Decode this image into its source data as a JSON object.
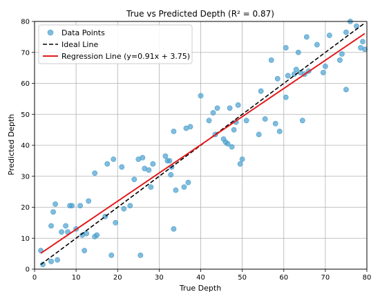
{
  "chart_data": {
    "type": "scatter",
    "title": "True vs Predicted Depth (R² = 0.87)",
    "xlabel": "True Depth",
    "ylabel": "Predicted Depth",
    "xlim": [
      0,
      80
    ],
    "ylim": [
      0,
      80
    ],
    "xticks": [
      0,
      10,
      20,
      30,
      40,
      50,
      60,
      70,
      80
    ],
    "yticks": [
      0,
      10,
      20,
      30,
      40,
      50,
      60,
      70,
      80
    ],
    "grid": true,
    "legend_position": "top-left",
    "series": [
      {
        "name": "Data Points",
        "kind": "scatter",
        "color": "#4a9fce",
        "points": [
          [
            1.5,
            6
          ],
          [
            2,
            1.5
          ],
          [
            4,
            2.5
          ],
          [
            4,
            14
          ],
          [
            4.5,
            18.5
          ],
          [
            5,
            21
          ],
          [
            5.5,
            3
          ],
          [
            6.5,
            12
          ],
          [
            7.5,
            14
          ],
          [
            8,
            12
          ],
          [
            8.5,
            20.5
          ],
          [
            9,
            20.5
          ],
          [
            10,
            13
          ],
          [
            11,
            20.5
          ],
          [
            11.5,
            11
          ],
          [
            12,
            6
          ],
          [
            12.5,
            11.5
          ],
          [
            13,
            22
          ],
          [
            14.5,
            31
          ],
          [
            14.5,
            10.5
          ],
          [
            15,
            11
          ],
          [
            17,
            17
          ],
          [
            17.5,
            34
          ],
          [
            18.5,
            4.5
          ],
          [
            19,
            35.5
          ],
          [
            19.5,
            15
          ],
          [
            21,
            33
          ],
          [
            21.5,
            19.5
          ],
          [
            23,
            20.5
          ],
          [
            24,
            29
          ],
          [
            25,
            35.5
          ],
          [
            25.5,
            4.5
          ],
          [
            26,
            36
          ],
          [
            26.5,
            32.5
          ],
          [
            27.5,
            32
          ],
          [
            28,
            26.5
          ],
          [
            28.5,
            34
          ],
          [
            31.5,
            36.5
          ],
          [
            32,
            35
          ],
          [
            32.5,
            35
          ],
          [
            32.8,
            30.5
          ],
          [
            33,
            33
          ],
          [
            33.5,
            44.5
          ],
          [
            33.5,
            13
          ],
          [
            34,
            25.5
          ],
          [
            36,
            26.5
          ],
          [
            36.5,
            45.5
          ],
          [
            37,
            28
          ],
          [
            37.5,
            46
          ],
          [
            40,
            56
          ],
          [
            42,
            48
          ],
          [
            43,
            50.5
          ],
          [
            43.5,
            43.5
          ],
          [
            44,
            52
          ],
          [
            45.5,
            42
          ],
          [
            46,
            41
          ],
          [
            46.5,
            40.5
          ],
          [
            47,
            52
          ],
          [
            47.5,
            39.5
          ],
          [
            48,
            45
          ],
          [
            48.5,
            47.5
          ],
          [
            49,
            53
          ],
          [
            49.5,
            34
          ],
          [
            50,
            35.5
          ],
          [
            51,
            48
          ],
          [
            54,
            43.5
          ],
          [
            54.5,
            57.5
          ],
          [
            55.5,
            48.5
          ],
          [
            57,
            67.5
          ],
          [
            58,
            47
          ],
          [
            58.5,
            61.5
          ],
          [
            59,
            44.5
          ],
          [
            60.5,
            71.5
          ],
          [
            60.5,
            55.5
          ],
          [
            61,
            62.5
          ],
          [
            62.5,
            63
          ],
          [
            63,
            64.5
          ],
          [
            63.5,
            70
          ],
          [
            64,
            63.5
          ],
          [
            64.5,
            48
          ],
          [
            65,
            63
          ],
          [
            65.5,
            75
          ],
          [
            66,
            64
          ],
          [
            68,
            72.5
          ],
          [
            69.5,
            63.5
          ],
          [
            70,
            65.5
          ],
          [
            71,
            75.5
          ],
          [
            73.5,
            67.5
          ],
          [
            74,
            69.5
          ],
          [
            75,
            76.5
          ],
          [
            75,
            58
          ],
          [
            76,
            80
          ],
          [
            77.5,
            78.5
          ],
          [
            78.5,
            71.5
          ],
          [
            79,
            73.5
          ],
          [
            79.5,
            71
          ]
        ]
      },
      {
        "name": "Ideal Line",
        "kind": "line",
        "style": "dashed",
        "color": "#000000",
        "x": [
          1.5,
          79.5
        ],
        "y": [
          1.5,
          79.5
        ]
      },
      {
        "name": "Regression Line (y=0.91x + 3.75)",
        "kind": "line",
        "style": "solid",
        "color": "#e31a1c",
        "x": [
          1.5,
          79.5
        ],
        "y": [
          5.12,
          76.1
        ]
      }
    ]
  }
}
